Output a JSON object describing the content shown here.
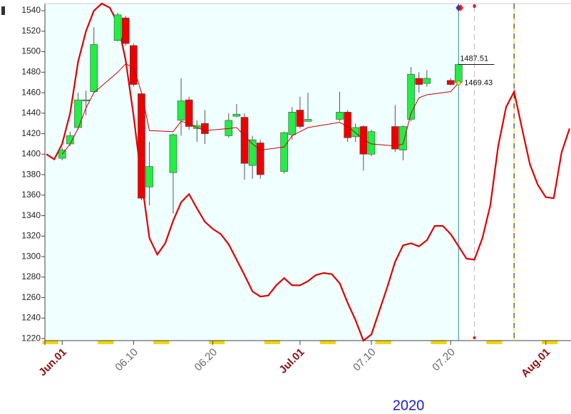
{
  "chart_data": {
    "type": "candlestick",
    "year": "2020",
    "x": [
      "06.01",
      "06.02",
      "06.03",
      "06.04",
      "06.05",
      "06.08",
      "06.09",
      "06.10",
      "06.11",
      "06.12",
      "06.15",
      "06.16",
      "06.17",
      "06.18",
      "06.19",
      "06.22",
      "06.23",
      "06.24",
      "06.25",
      "06.26",
      "06.29",
      "06.30",
      "07.01",
      "07.02",
      "07.06",
      "07.07",
      "07.08",
      "07.09",
      "07.10",
      "07.13",
      "07.14",
      "07.15",
      "07.16",
      "07.17",
      "07.20",
      "07.21"
    ],
    "open": [
      1396,
      1410,
      1426,
      1452,
      1461,
      1511,
      1533,
      1506,
      1459,
      1368,
      1382,
      1433,
      1453,
      1425,
      1430,
      1418,
      1437,
      1436,
      1389,
      1411,
      1383,
      1419,
      1443,
      1432,
      1434,
      1441,
      1417,
      1427,
      1400,
      1427,
      1404,
      1434,
      1474,
      1469,
      1472,
      1470
    ],
    "high": [
      1406,
      1422,
      1460,
      1462,
      1524,
      1538,
      1535,
      1508,
      1460,
      1412,
      1420,
      1474,
      1456,
      1433,
      1443,
      1440,
      1449,
      1440,
      1418,
      1414,
      1422,
      1446,
      1456,
      1460,
      1461,
      1443,
      1430,
      1428,
      1424,
      1448,
      1428,
      1485,
      1480,
      1482,
      1474,
      1489
    ],
    "low": [
      1394,
      1408,
      1424,
      1438,
      1460,
      1510,
      1506,
      1466,
      1355,
      1350,
      1342,
      1418,
      1424,
      1412,
      1410,
      1416,
      1436,
      1375,
      1376,
      1376,
      1381,
      1414,
      1425,
      1432,
      1432,
      1412,
      1412,
      1384,
      1398,
      1402,
      1394,
      1432,
      1460,
      1466,
      1467,
      1468
    ],
    "close": [
      1404,
      1418,
      1453,
      1453,
      1507,
      1536,
      1508,
      1468,
      1357,
      1388,
      1419,
      1452,
      1427,
      1428,
      1420,
      1433,
      1439,
      1391,
      1414,
      1380,
      1421,
      1441,
      1427,
      1434,
      1441,
      1416,
      1426,
      1400,
      1422,
      1405,
      1427,
      1478,
      1468,
      1474,
      1468,
      1487.51
    ],
    "up_color": "#22ee44",
    "down_color": "#ee0000",
    "ma": {
      "color": "#cc0000",
      "values": [
        1400,
        1410,
        1425,
        1445,
        1460,
        1480,
        1488,
        1485,
        1460,
        1423,
        1422,
        1432,
        1430,
        1426,
        1423,
        1425,
        1426,
        1418,
        1410,
        1404,
        1407,
        1418,
        1422,
        1426,
        1431,
        1427,
        1421,
        1414,
        1410,
        1408,
        1410,
        1440,
        1455,
        1458,
        1461,
        1469.43
      ]
    },
    "oscillator": {
      "color": "#dd0000",
      "x": [
        "05.30",
        "05.31",
        "06.01",
        "06.02",
        "06.03",
        "06.04",
        "06.05",
        "06.06",
        "06.07",
        "06.08",
        "06.09",
        "06.10",
        "06.11",
        "06.12",
        "06.13",
        "06.14",
        "06.15",
        "06.16",
        "06.17",
        "06.18",
        "06.19",
        "06.20",
        "06.21",
        "06.22",
        "06.23",
        "06.24",
        "06.25",
        "06.26",
        "06.27",
        "06.28",
        "06.29",
        "06.30",
        "07.01",
        "07.02",
        "07.03",
        "07.04",
        "07.05",
        "07.06",
        "07.07",
        "07.08",
        "07.09",
        "07.10",
        "07.11",
        "07.12",
        "07.13",
        "07.14",
        "07.15",
        "07.16",
        "07.17",
        "07.18",
        "07.19",
        "07.20",
        "07.21",
        "07.22",
        "07.23",
        "07.24",
        "07.25",
        "07.26",
        "07.27",
        "07.28",
        "07.29",
        "07.30",
        "07.31",
        "08.01",
        "08.02",
        "08.03",
        "08.04"
      ],
      "values": [
        1400,
        1395,
        1410,
        1440,
        1490,
        1520,
        1540,
        1547,
        1543,
        1528,
        1492,
        1438,
        1375,
        1318,
        1302,
        1313,
        1335,
        1353,
        1361,
        1347,
        1334,
        1327,
        1322,
        1312,
        1297,
        1282,
        1266,
        1261,
        1262,
        1272,
        1279,
        1272,
        1272,
        1276,
        1282,
        1284,
        1283,
        1274,
        1255,
        1238,
        1218,
        1224,
        1247,
        1270,
        1295,
        1311,
        1313,
        1310,
        1316,
        1330,
        1330,
        1322,
        1310,
        1298,
        1297,
        1318,
        1350,
        1408,
        1446,
        1461,
        1425,
        1390,
        1370,
        1358,
        1357,
        1402,
        1425
      ]
    },
    "annotations": [
      {
        "value": 1487.51
      },
      {
        "value": 1469.43
      }
    ],
    "xlim": [
      "05.30",
      "08.04"
    ],
    "xticks": [
      {
        "value": "06.01",
        "label": "Jun.01"
      },
      "06.10",
      "06.20",
      {
        "value": "07.01",
        "label": "Jul.01"
      },
      "07.10",
      "07.20",
      {
        "value": "08.01",
        "label": "Aug.01"
      }
    ],
    "ylim": [
      1218,
      1547
    ],
    "yticks": [
      1220,
      1240,
      1260,
      1280,
      1300,
      1320,
      1340,
      1360,
      1380,
      1400,
      1420,
      1440,
      1460,
      1480,
      1500,
      1520,
      1540
    ]
  }
}
